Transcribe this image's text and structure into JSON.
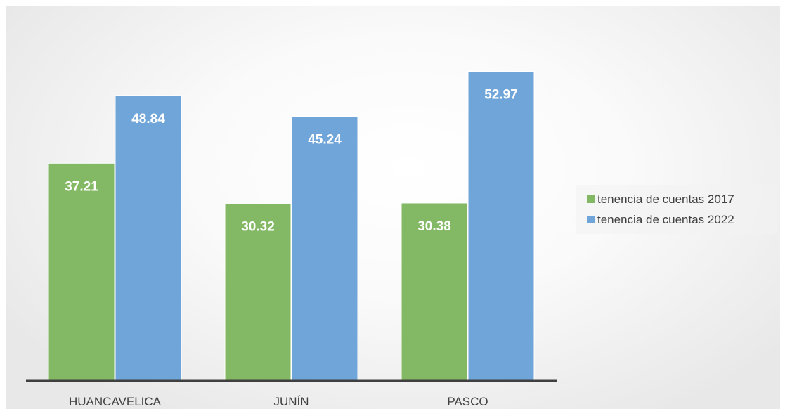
{
  "chart_data": {
    "type": "bar",
    "categories": [
      "HUANCAVELICA",
      "JUNÍN",
      "PASCO"
    ],
    "series": [
      {
        "name": "tenencia de cuentas 2017",
        "values": [
          37.21,
          30.32,
          30.38
        ],
        "color": "#83B964",
        "labels": [
          "37.21",
          "30.32",
          "30.38"
        ]
      },
      {
        "name": "tenencia de cuentas 2022",
        "values": [
          48.84,
          45.24,
          52.97
        ],
        "color": "#70A5D9",
        "labels": [
          "48.84",
          "45.24",
          "52.97"
        ]
      }
    ],
    "title": "",
    "xlabel": "",
    "ylabel": "",
    "ylim": [
      0,
      54
    ],
    "grid": false,
    "legend_position": "right",
    "axis_color": "#404040"
  }
}
